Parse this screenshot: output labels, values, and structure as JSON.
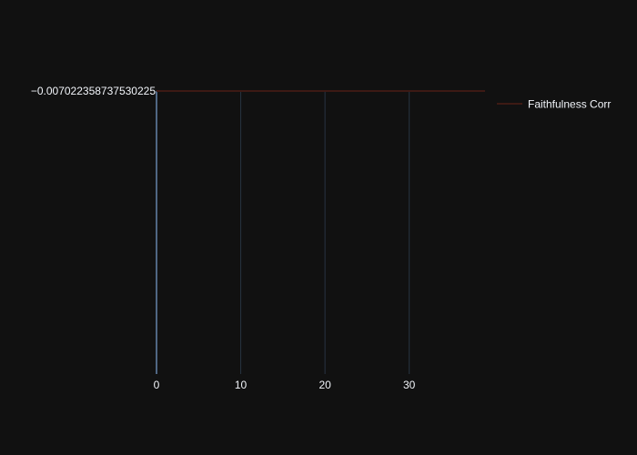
{
  "colors": {
    "background": "#111111",
    "gridline": "#283442",
    "zeroline": "#506784",
    "text": "#f2f5fa",
    "series_line": "#3d1a14"
  },
  "chart_data": {
    "type": "line",
    "title": "",
    "xlabel": "",
    "ylabel": "",
    "xlim": [
      0,
      39
    ],
    "x_ticks": [
      0,
      10,
      20,
      30
    ],
    "y_ticks": [
      -0.007022358737530225
    ],
    "y_tick_labels": [
      "−0.007022358737530225"
    ],
    "grid": true,
    "legend": "top-right",
    "series": [
      {
        "name": "Faithfulness Corr",
        "x": [
          0,
          39
        ],
        "y": [
          -0.007022358737530225,
          -0.007022358737530225
        ]
      }
    ]
  }
}
